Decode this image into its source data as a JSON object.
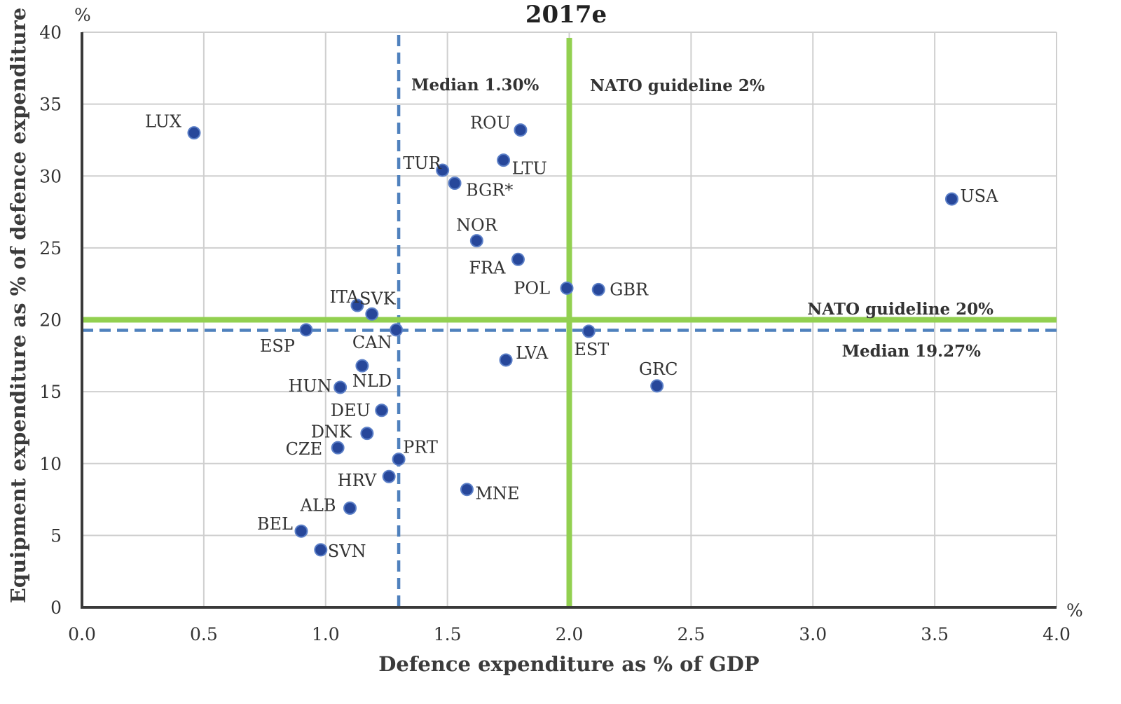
{
  "chart_data": {
    "type": "scatter",
    "title": "2017e",
    "xlabel": "Defence expenditure as % of GDP",
    "ylabel": "Equipment expenditure as % of defence expenditure",
    "x_unit": "%",
    "y_unit": "%",
    "xlim": [
      0,
      4
    ],
    "ylim": [
      0,
      40
    ],
    "x_ticks": [
      "0.0",
      "0.5",
      "1.0",
      "1.5",
      "2.0",
      "2.5",
      "3.0",
      "3.5",
      "4.0"
    ],
    "y_ticks": [
      "0",
      "5",
      "10",
      "15",
      "20",
      "25",
      "30",
      "35",
      "40"
    ],
    "grid": true,
    "points": [
      {
        "label": "LUX",
        "x": 0.46,
        "y": 33.0
      },
      {
        "label": "ROU",
        "x": 1.8,
        "y": 33.2
      },
      {
        "label": "LTU",
        "x": 1.73,
        "y": 31.1
      },
      {
        "label": "TUR",
        "x": 1.48,
        "y": 30.4
      },
      {
        "label": "BGR*",
        "x": 1.53,
        "y": 29.5
      },
      {
        "label": "USA",
        "x": 3.57,
        "y": 28.4
      },
      {
        "label": "NOR",
        "x": 1.62,
        "y": 25.5
      },
      {
        "label": "FRA",
        "x": 1.79,
        "y": 24.2
      },
      {
        "label": "POL",
        "x": 1.99,
        "y": 22.2
      },
      {
        "label": "GBR",
        "x": 2.12,
        "y": 22.1
      },
      {
        "label": "ITA",
        "x": 1.13,
        "y": 21.0
      },
      {
        "label": "SVK",
        "x": 1.19,
        "y": 20.4
      },
      {
        "label": "ESP",
        "x": 0.92,
        "y": 19.3
      },
      {
        "label": "CAN",
        "x": 1.29,
        "y": 19.3
      },
      {
        "label": "EST",
        "x": 2.08,
        "y": 19.2
      },
      {
        "label": "LVA",
        "x": 1.74,
        "y": 17.2
      },
      {
        "label": "NLD",
        "x": 1.15,
        "y": 16.8
      },
      {
        "label": "GRC",
        "x": 2.36,
        "y": 15.4
      },
      {
        "label": "HUN",
        "x": 1.06,
        "y": 15.3
      },
      {
        "label": "DEU",
        "x": 1.23,
        "y": 13.7
      },
      {
        "label": "DNK",
        "x": 1.17,
        "y": 12.1
      },
      {
        "label": "CZE",
        "x": 1.05,
        "y": 11.1
      },
      {
        "label": "PRT",
        "x": 1.3,
        "y": 10.3
      },
      {
        "label": "HRV",
        "x": 1.26,
        "y": 9.1
      },
      {
        "label": "MNE",
        "x": 1.58,
        "y": 8.2
      },
      {
        "label": "ALB",
        "x": 1.1,
        "y": 6.9
      },
      {
        "label": "BEL",
        "x": 0.9,
        "y": 5.3
      },
      {
        "label": "SVN",
        "x": 0.98,
        "y": 4.0
      }
    ],
    "reference_lines": [
      {
        "orientation": "vertical",
        "value": 1.3,
        "style": "dashed",
        "color": "#4f81bd",
        "label": "Median 1.30%"
      },
      {
        "orientation": "vertical",
        "value": 2.0,
        "style": "solid",
        "color": "#92d050",
        "label": "NATO guideline 2%"
      },
      {
        "orientation": "horizontal",
        "value": 20,
        "style": "solid",
        "color": "#92d050",
        "label": "NATO guideline 20%"
      },
      {
        "orientation": "horizontal",
        "value": 19.27,
        "style": "dashed",
        "color": "#4f81bd",
        "label": "Median 19.27%"
      }
    ],
    "colors": {
      "point": "#27479a",
      "point_edge": "#5b7fc7",
      "grid": "#cfcfcf",
      "axis": "#3a3a3a"
    }
  }
}
